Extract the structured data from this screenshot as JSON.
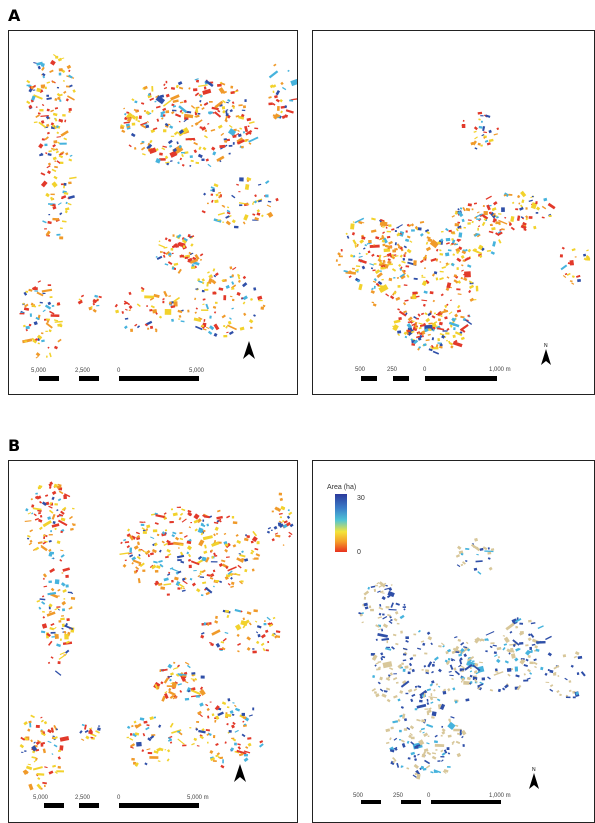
{
  "figure": {
    "section_a_label": "A",
    "section_b_label": "B"
  },
  "panels": [
    {
      "id": "a-left",
      "scale_labels": [
        "5,000",
        "2,500",
        "0",
        "5,000"
      ],
      "north": true
    },
    {
      "id": "a-right",
      "scale_labels": [
        "500",
        "250",
        "0",
        "1,000 m"
      ],
      "north": true
    },
    {
      "id": "b-left",
      "scale_labels": [
        "5,000",
        "2,500",
        "0",
        "5,000 m"
      ],
      "north": true
    },
    {
      "id": "b-right",
      "scale_labels": [
        "500",
        "250",
        "0",
        "1,000 m"
      ],
      "north": true
    }
  ],
  "legend": {
    "title": "Area (ha)",
    "max_label": "30",
    "min_label": "0",
    "gradient_colors": [
      "#2b3a9c",
      "#3b7fc9",
      "#4fc4d6",
      "#f3e43a",
      "#f5a02a",
      "#e8311f"
    ]
  },
  "colors": {
    "dark_blue": "#2f4fa8",
    "light_blue": "#46b3dd",
    "yellow": "#f2d22c",
    "orange": "#f09a2a",
    "red": "#e2392a",
    "tan": "#d8c79a"
  }
}
